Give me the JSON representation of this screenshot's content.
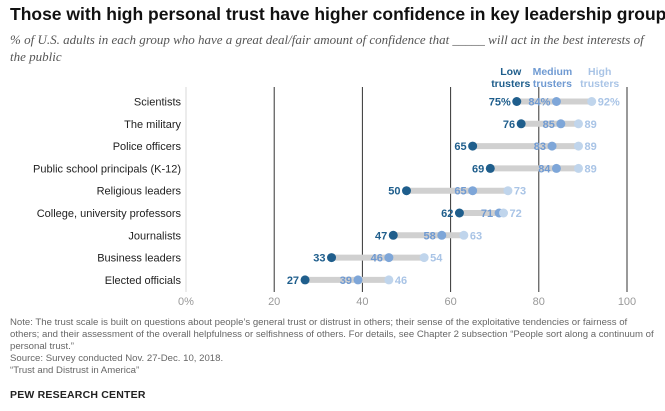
{
  "header": {
    "title": "Those with high personal trust have higher confidence in key leadership groups",
    "subtitle": "% of U.S. adults in each group who have a great deal/fair amount of confidence that _____ will act in the best interests of the public"
  },
  "chart_data": {
    "type": "dot",
    "categories": [
      "Scientists",
      "The military",
      "Police officers",
      "Public school principals (K-12)",
      "Religious leaders",
      "College, university professors",
      "Journalists",
      "Business leaders",
      "Elected officials"
    ],
    "series": [
      {
        "name": "Low trusters",
        "values": [
          75,
          76,
          65,
          69,
          50,
          62,
          47,
          33,
          27
        ],
        "labels": [
          "75%",
          "76",
          "65",
          "69",
          "50",
          "62",
          "47",
          "33",
          "27"
        ],
        "color": "#1f5e8c"
      },
      {
        "name": "Medium trusters",
        "values": [
          84,
          85,
          83,
          84,
          65,
          71,
          58,
          46,
          39
        ],
        "labels": [
          "84%",
          "85",
          "83",
          "84",
          "65",
          "71",
          "58",
          "46",
          "39"
        ],
        "color": "#7ea6d8"
      },
      {
        "name": "High trusters",
        "values": [
          92,
          89,
          89,
          89,
          73,
          72,
          63,
          54,
          46
        ],
        "labels": [
          "92%",
          "89",
          "89",
          "89",
          "73",
          "72",
          "63",
          "54",
          "46"
        ],
        "color": "#c0d5ec"
      }
    ],
    "xlim": [
      0,
      100
    ],
    "ticks": [
      0,
      20,
      40,
      60,
      80,
      100
    ],
    "tick_labels": [
      "0%",
      "20",
      "40",
      "60",
      "80",
      "100"
    ],
    "legend_placement": "top-right",
    "colors": {
      "range_bar": "#d0d0d0",
      "gridline": "#333333",
      "low_label": "#1f5e8c",
      "medium_label": "#6f9ad2",
      "high_label": "#a9c4e6"
    }
  },
  "notes": {
    "note": "Note: The trust scale is built on questions about people’s general trust or distrust in others; their sense of the exploitative tendencies or fairness of others; and their assessment of the overall helpfulness or selfishness of others. For details, see Chapter 2 subsection “People sort along a continuum of personal trust.”",
    "source": "Source: Survey conducted Nov. 27-Dec. 10, 2018.",
    "report": "“Trust and Distrust in America”"
  },
  "footer": {
    "org": "PEW RESEARCH CENTER"
  }
}
